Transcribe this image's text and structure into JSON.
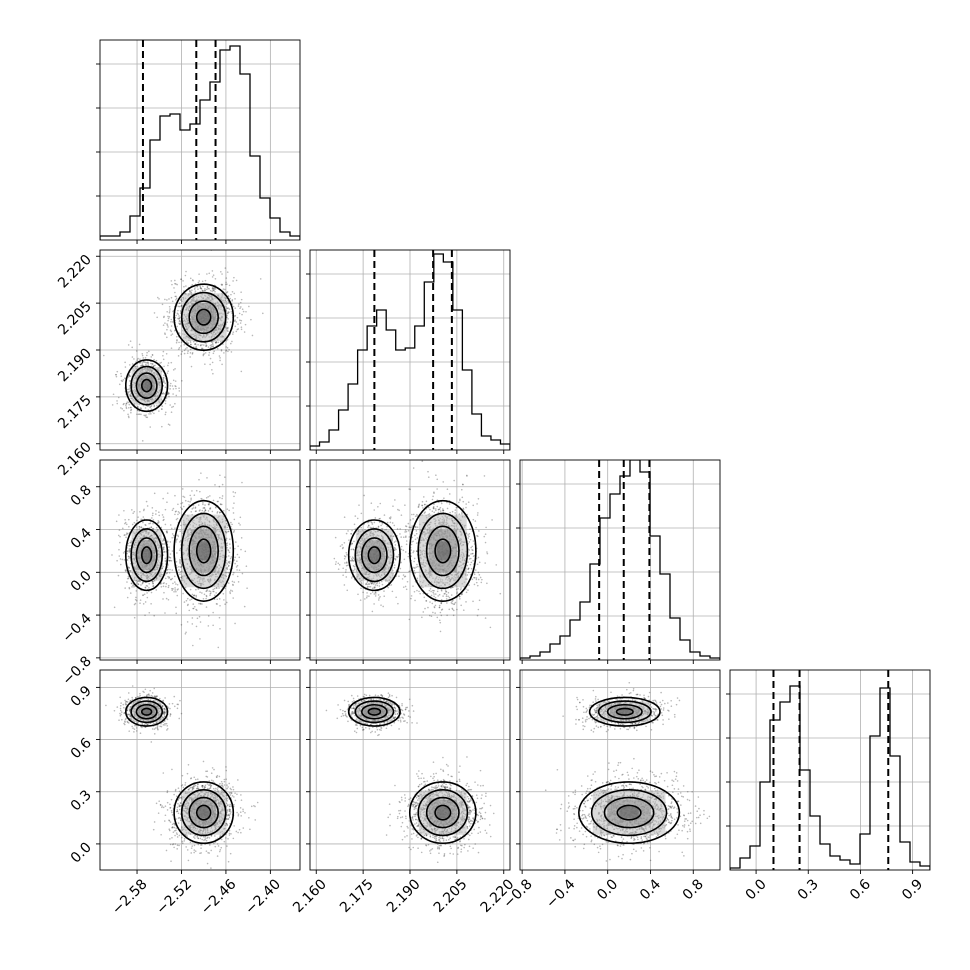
{
  "chart_data": {
    "type": "corner",
    "parameters": [
      "",
      "",
      "",
      ""
    ],
    "ranges": [
      [
        -2.63,
        -2.36
      ],
      [
        2.158,
        2.222
      ],
      [
        -0.82,
        1.05
      ],
      [
        -0.15,
        1.0
      ]
    ],
    "ticks": [
      [
        -2.58,
        -2.52,
        -2.46,
        -2.4
      ],
      [
        2.16,
        2.175,
        2.19,
        2.205,
        2.22
      ],
      [
        -0.8,
        -0.4,
        0.0,
        0.4,
        0.8
      ],
      [
        0.0,
        0.3,
        0.6,
        0.9
      ]
    ],
    "tick_labels": [
      [
        "−2.58",
        "−2.52",
        "−2.46",
        "−2.40"
      ],
      [
        "2.160",
        "2.175",
        "2.190",
        "2.205",
        "2.220"
      ],
      [
        "−0.8",
        "−0.4",
        "0.0",
        "0.4",
        "0.8"
      ],
      [
        "0.0",
        "0.3",
        "0.6",
        "0.9"
      ]
    ],
    "quantiles": [
      [
        -2.572,
        -2.5,
        -2.474
      ],
      [
        2.1786,
        2.1974,
        2.2034
      ],
      [
        -0.08,
        0.15,
        0.39
      ],
      [
        0.1,
        0.25,
        0.76
      ]
    ],
    "histograms": [
      [
        0.02,
        0.02,
        0.04,
        0.12,
        0.26,
        0.5,
        0.62,
        0.63,
        0.55,
        0.58,
        0.7,
        0.79,
        0.95,
        0.97,
        0.83,
        0.42,
        0.21,
        0.11,
        0.04,
        0.02
      ],
      [
        0.02,
        0.04,
        0.1,
        0.2,
        0.33,
        0.5,
        0.62,
        0.7,
        0.6,
        0.5,
        0.51,
        0.62,
        0.84,
        0.98,
        0.94,
        0.7,
        0.4,
        0.18,
        0.07,
        0.05,
        0.03
      ],
      [
        0.01,
        0.02,
        0.04,
        0.08,
        0.12,
        0.2,
        0.29,
        0.48,
        0.71,
        0.83,
        0.92,
        1.0,
        0.94,
        0.62,
        0.43,
        0.21,
        0.1,
        0.04,
        0.02,
        0.01
      ],
      [
        0.01,
        0.06,
        0.12,
        0.44,
        0.75,
        0.84,
        0.92,
        0.5,
        0.27,
        0.13,
        0.07,
        0.05,
        0.03,
        0.18,
        0.67,
        0.91,
        0.57,
        0.14,
        0.04,
        0.02
      ]
    ],
    "modes": [
      {
        "weight": 0.4,
        "mean": [
          -2.567,
          2.1786,
          0.16,
          0.76
        ],
        "sd": [
          0.012,
          0.0035,
          0.14,
          0.035
        ]
      },
      {
        "weight": 0.6,
        "mean": [
          -2.49,
          2.2005,
          0.2,
          0.18
        ],
        "sd": [
          0.017,
          0.0045,
          0.2,
          0.075
        ]
      }
    ],
    "grid": true,
    "sample_color": "#333333"
  }
}
